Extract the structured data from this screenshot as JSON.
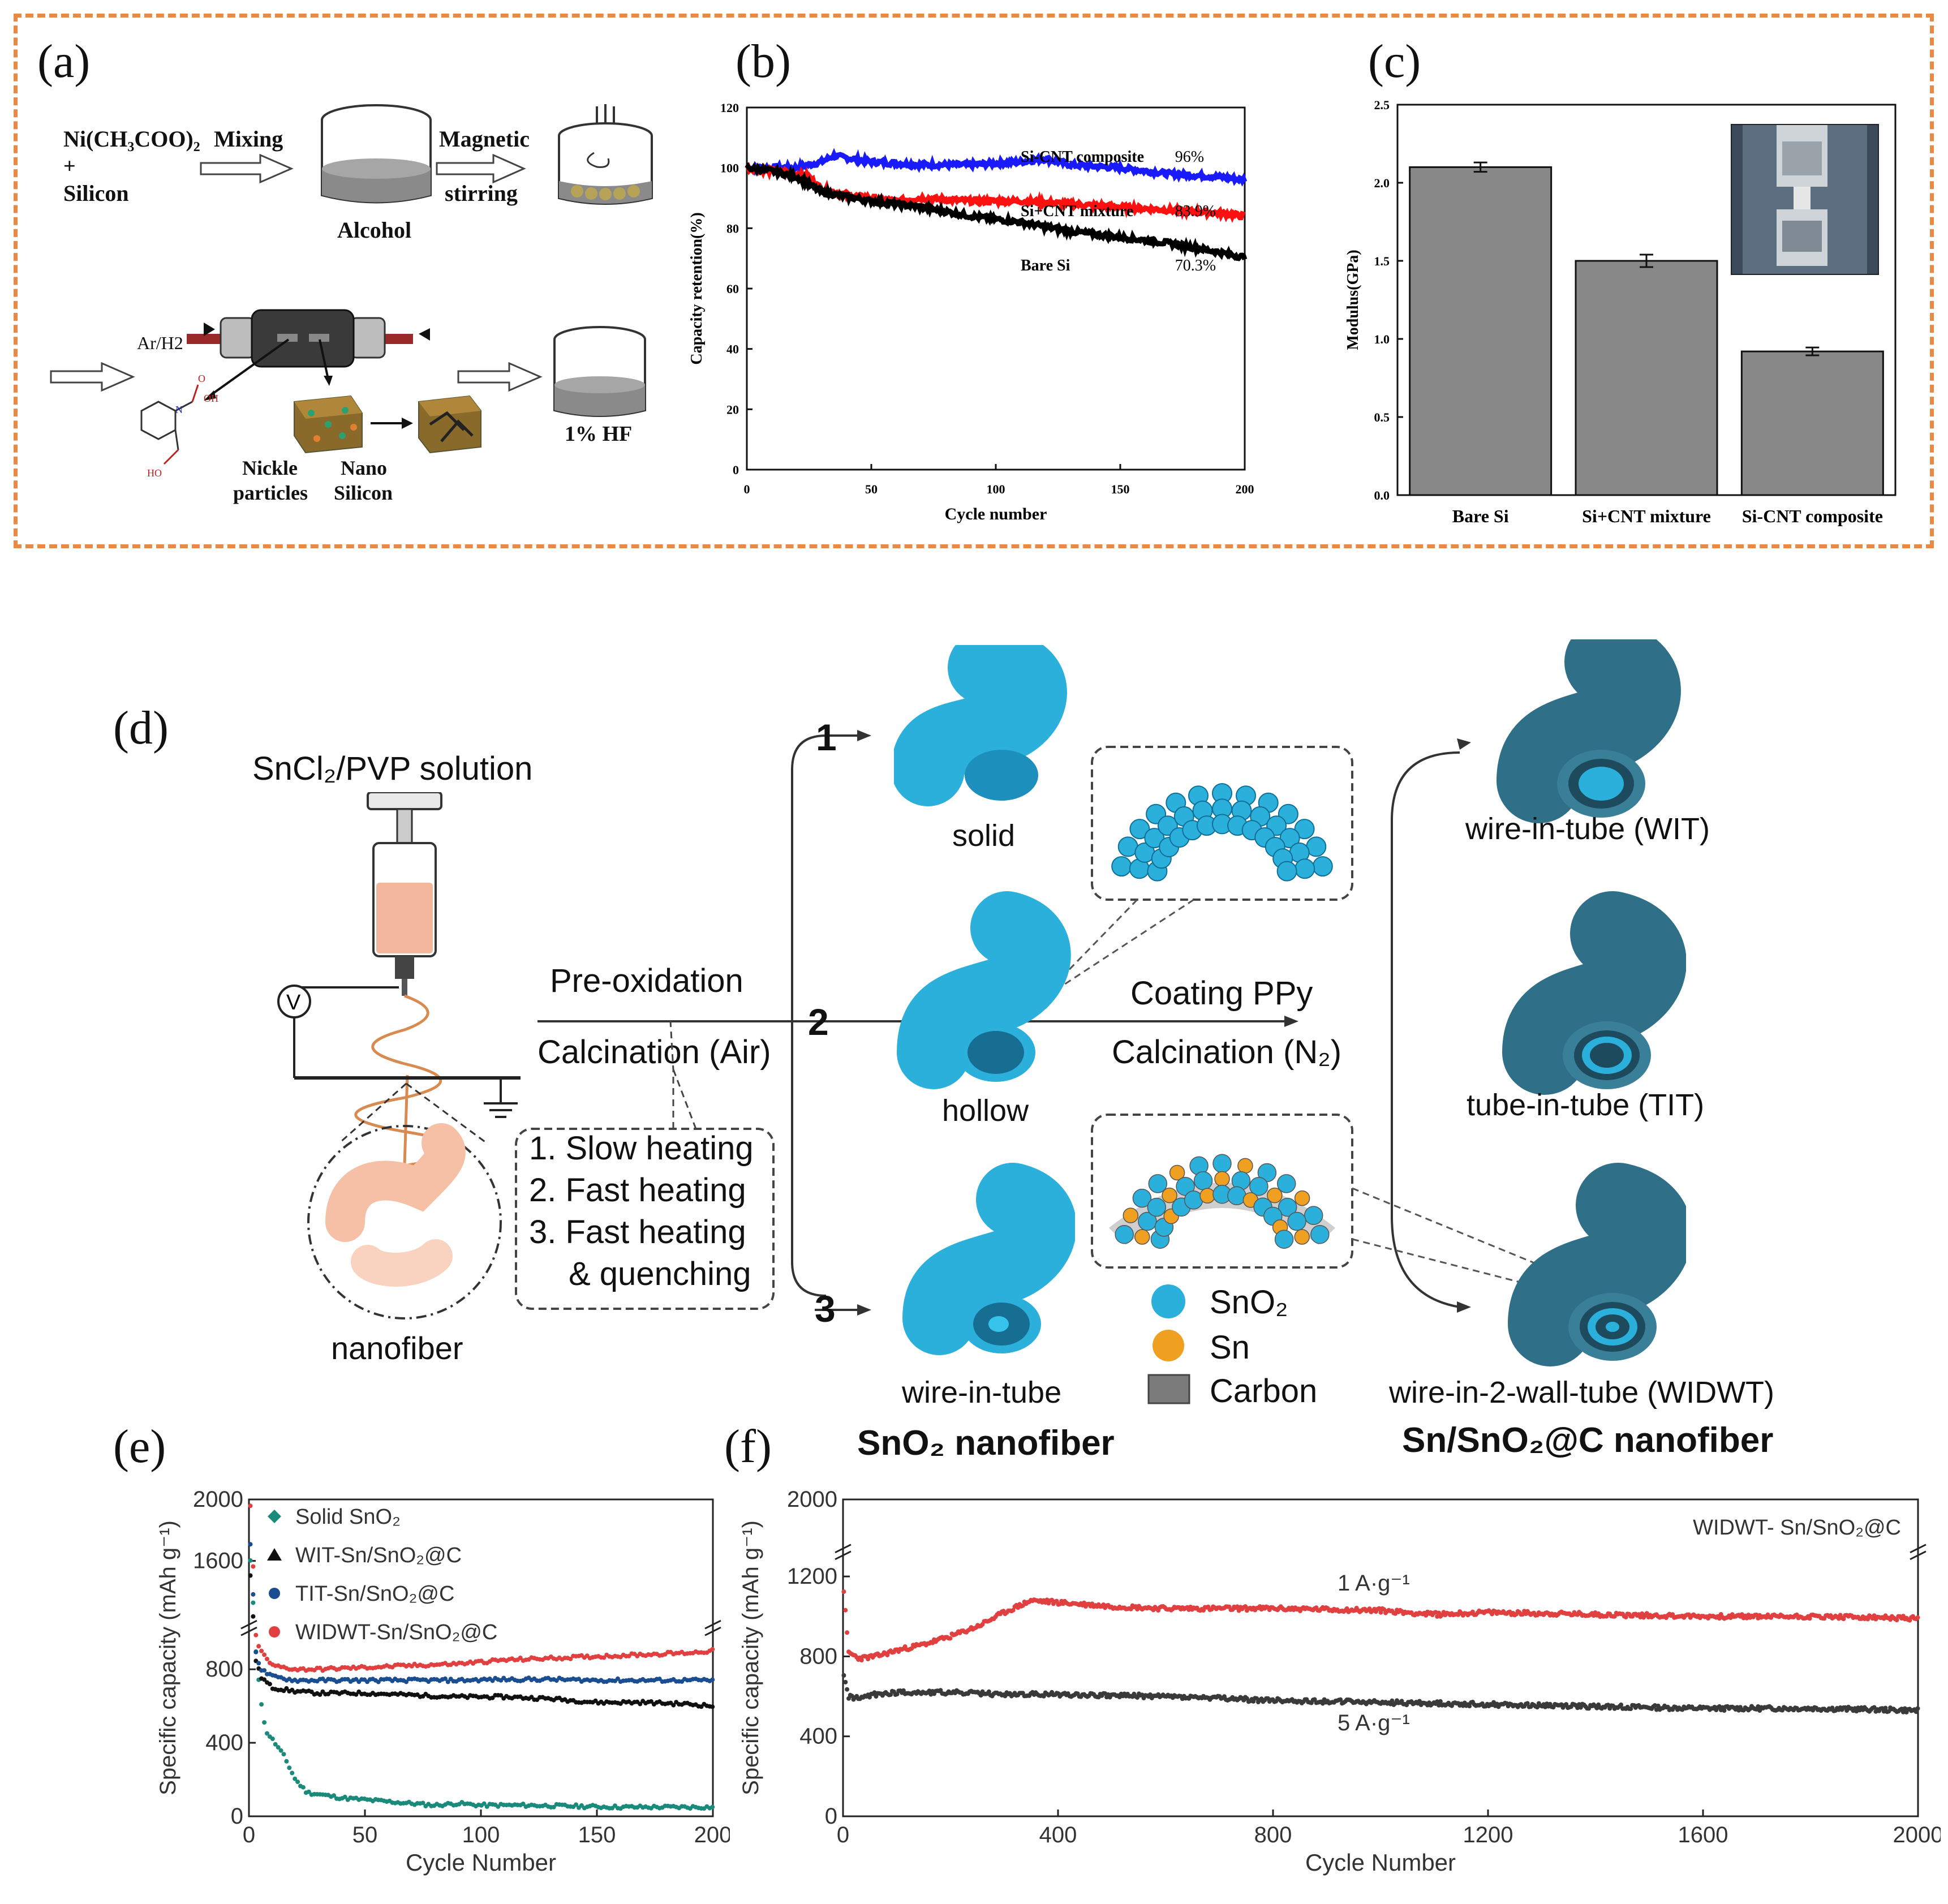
{
  "panel_labels": {
    "a": "(a)",
    "b": "(b)",
    "c": "(c)",
    "d": "(d)",
    "e": "(e)",
    "f": "(f)"
  },
  "panel_a": {
    "reagent_1": "Ni(CH₃COO)₂",
    "plus": "+",
    "reagent_2": "Silicon",
    "step_mixing": "Mixing",
    "beaker_1_label": "Alcohol",
    "step_magnetic": "Magnetic",
    "step_stirring": "stirring",
    "gas_label": "Ar/H2",
    "nickle_label_1": "Nickle",
    "nickle_label_2": "particles",
    "nano_label_1": "Nano",
    "nano_label_2": "Silicon",
    "hf_label": "1% HF",
    "molecule_oh": "OH",
    "molecule_ho": "HO",
    "molecule_n": "N",
    "molecule_o": "O"
  },
  "panel_d": {
    "solution_label": "SnCl₂/PVP solution",
    "voltmeter": "V",
    "nanofiber_label": "nanofiber",
    "pre_oxidation": "Pre-oxidation",
    "calcination_air": "Calcination (Air)",
    "heating_1": "1. Slow heating",
    "heating_2": "2. Fast heating",
    "heating_3": "3. Fast heating",
    "heating_3b": "& quenching",
    "route_1": "1",
    "route_2": "2",
    "route_3": "3",
    "solid": "solid",
    "hollow": "hollow",
    "wire_in_tube": "wire-in-tube",
    "sno2_nanofiber": "SnO₂ nanofiber",
    "coating": "Coating PPy",
    "calcination_n2": "Calcination (N₂)",
    "wit": "wire-in-tube (WIT)",
    "tit": "tube-in-tube (TIT)",
    "widwt": "wire-in-2-wall-tube (WIDWT)",
    "sn_sno2_c_nanofiber": "Sn/SnO₂@C nanofiber",
    "legend_sno2": "SnO₂",
    "legend_sn": "Sn",
    "legend_carbon": "Carbon",
    "colors": {
      "sno2": "#2bb0dc",
      "sn": "#f0a020",
      "carbon": "#7a7a7a",
      "coated": "#2f6f88"
    }
  },
  "chart_data": [
    {
      "id": "b",
      "type": "line",
      "title": "",
      "xlabel": "Cycle number",
      "ylabel": "Capacity retention(%)",
      "xlim": [
        0,
        200
      ],
      "ylim": [
        0,
        120
      ],
      "xticks": [
        0,
        50,
        100,
        150,
        200
      ],
      "yticks": [
        0,
        20,
        40,
        60,
        80,
        100,
        120
      ],
      "series": [
        {
          "name": "Si-CNT composite",
          "annotation": "96%",
          "color": "#1a1aff",
          "x": [
            0,
            10,
            20,
            30,
            35,
            50,
            70,
            90,
            110,
            120,
            130,
            150,
            170,
            190,
            200
          ],
          "y": [
            100,
            100,
            100,
            102,
            104,
            102,
            101,
            101,
            102,
            103,
            101,
            100,
            98,
            97,
            96
          ]
        },
        {
          "name": "Si+CNT mixture",
          "annotation": "83.9%",
          "color": "#ff1010",
          "x": [
            0,
            10,
            20,
            25,
            30,
            40,
            60,
            70,
            90,
            110,
            130,
            150,
            170,
            190,
            200
          ],
          "y": [
            100,
            99,
            98,
            97,
            93,
            91,
            89,
            90,
            89,
            89,
            88,
            87,
            86,
            85,
            84
          ]
        },
        {
          "name": "Bare Si",
          "annotation": "70.3%",
          "color": "#000000",
          "x": [
            0,
            10,
            20,
            30,
            50,
            70,
            90,
            110,
            130,
            140,
            150,
            170,
            190,
            200
          ],
          "y": [
            100,
            99,
            97,
            92,
            89,
            87,
            84,
            82,
            79,
            78,
            77,
            75,
            72,
            70.3
          ]
        }
      ]
    },
    {
      "id": "c",
      "type": "bar",
      "title": "",
      "xlabel": "",
      "ylabel": "Modulus(GPa)",
      "ylim": [
        0,
        2.5
      ],
      "yticks": [
        0.0,
        0.5,
        1.0,
        1.5,
        2.0,
        2.5
      ],
      "categories": [
        "Bare Si",
        "Si+CNT mixture",
        "Si-CNT composite"
      ],
      "values": [
        2.1,
        1.5,
        0.92
      ],
      "errors": [
        0.03,
        0.04,
        0.025
      ]
    },
    {
      "id": "e",
      "type": "scatter",
      "title": "",
      "xlabel": "Cycle Number",
      "ylabel": "Specific capacity (mAh g⁻¹)",
      "xlim": [
        0,
        200
      ],
      "ylim": [
        0,
        2000
      ],
      "xticks": [
        0,
        50,
        100,
        150,
        200
      ],
      "yticks": [
        0,
        400,
        800,
        1600,
        2000
      ],
      "axis_break": [
        1000,
        1200
      ],
      "series": [
        {
          "name": "Solid SnO₂",
          "color": "#1a8a7a",
          "x": [
            1,
            3,
            5,
            7,
            10,
            15,
            20,
            25,
            30,
            40,
            50,
            60,
            70,
            80,
            90,
            100,
            120,
            140,
            160,
            180,
            200
          ],
          "y": [
            1600,
            900,
            650,
            470,
            420,
            330,
            200,
            130,
            120,
            100,
            90,
            80,
            70,
            60,
            70,
            60,
            60,
            55,
            50,
            50,
            50
          ]
        },
        {
          "name": "WIT-Sn/SnO₂@C",
          "color": "#111111",
          "x": [
            1,
            3,
            5,
            10,
            20,
            30,
            50,
            70,
            90,
            110,
            130,
            150,
            170,
            190,
            200
          ],
          "y": [
            1500,
            850,
            760,
            700,
            680,
            670,
            670,
            660,
            650,
            650,
            640,
            620,
            620,
            610,
            600
          ]
        },
        {
          "name": "TIT-Sn/SnO₂@C",
          "color": "#1a4e90",
          "x": [
            1,
            3,
            5,
            10,
            20,
            30,
            50,
            70,
            90,
            110,
            130,
            150,
            170,
            190,
            200
          ],
          "y": [
            1700,
            900,
            800,
            760,
            740,
            740,
            740,
            740,
            740,
            745,
            745,
            740,
            740,
            740,
            740
          ]
        },
        {
          "name": "WIDWT-Sn/SnO₂@C",
          "color": "#e04040",
          "x": [
            1,
            3,
            5,
            10,
            20,
            30,
            50,
            70,
            90,
            110,
            130,
            150,
            170,
            190,
            200
          ],
          "y": [
            1950,
            980,
            900,
            820,
            800,
            800,
            810,
            820,
            830,
            850,
            860,
            870,
            880,
            890,
            900
          ]
        }
      ]
    },
    {
      "id": "f",
      "type": "scatter",
      "title": "WIDWT- Sn/SnO₂@C",
      "xlabel": "Cycle Number",
      "ylabel": "Specific capacity (mAh g⁻¹)",
      "xlim": [
        0,
        2000
      ],
      "ylim": [
        0,
        2000
      ],
      "xticks": [
        0,
        400,
        800,
        1200,
        1600,
        2000
      ],
      "yticks": [
        0,
        400,
        800,
        1200,
        2000
      ],
      "axis_break": [
        1300,
        1900
      ],
      "annotations": [
        "1 A·g⁻¹",
        "5 A·g⁻¹"
      ],
      "series": [
        {
          "name": "1 A·g⁻¹",
          "color": "#e04040",
          "x": [
            1,
            10,
            30,
            60,
            100,
            150,
            200,
            250,
            300,
            350,
            400,
            500,
            600,
            800,
            1000,
            1100,
            1200,
            1400,
            1600,
            1800,
            2000
          ],
          "y": [
            1150,
            820,
            790,
            800,
            830,
            860,
            900,
            950,
            1020,
            1080,
            1070,
            1050,
            1040,
            1040,
            1030,
            1010,
            1020,
            1010,
            1000,
            1000,
            990
          ]
        },
        {
          "name": "5 A·g⁻¹",
          "color": "#3a3a3a",
          "x": [
            1,
            10,
            30,
            60,
            100,
            200,
            300,
            400,
            600,
            800,
            1000,
            1200,
            1400,
            1600,
            1800,
            2000
          ],
          "y": [
            700,
            600,
            590,
            610,
            620,
            620,
            610,
            610,
            600,
            580,
            570,
            560,
            550,
            540,
            540,
            530
          ]
        }
      ]
    }
  ]
}
